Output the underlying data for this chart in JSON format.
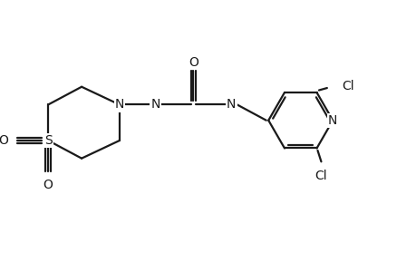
{
  "bg_color": "#ffffff",
  "line_color": "#1a1a1a",
  "text_color": "#1a1a1a",
  "line_width": 1.6,
  "font_size": 10,
  "figsize": [
    4.6,
    3.0
  ],
  "dpi": 100,
  "xlim": [
    0,
    9.2
  ],
  "ylim": [
    0,
    6
  ]
}
